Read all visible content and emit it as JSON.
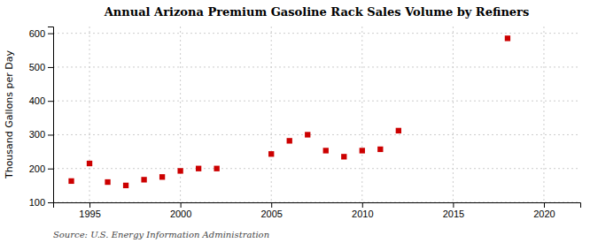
{
  "chart_data": {
    "type": "scatter",
    "title": "Annual Arizona Premium Gasoline Rack Sales Volume by Refiners",
    "ylabel": "Thousand Gallons per Day",
    "annotations": [
      "Source: U.S. Energy Information Administration"
    ],
    "x": [
      1994,
      1995,
      1996,
      1997,
      1998,
      1999,
      2000,
      2001,
      2002,
      2005,
      2006,
      2007,
      2008,
      2009,
      2010,
      2011,
      2012,
      2018
    ],
    "values": [
      163,
      215,
      160,
      150,
      167,
      175,
      193,
      200,
      200,
      243,
      282,
      300,
      253,
      235,
      253,
      257,
      312,
      585
    ],
    "color": "#cc0000",
    "marker": "square",
    "xlim": [
      1993,
      2022
    ],
    "ylim": [
      100,
      620
    ],
    "xticks": [
      1995,
      2000,
      2005,
      2010,
      2015,
      2020
    ],
    "yticks": [
      100,
      200,
      300,
      400,
      500,
      600
    ],
    "grid": true
  }
}
